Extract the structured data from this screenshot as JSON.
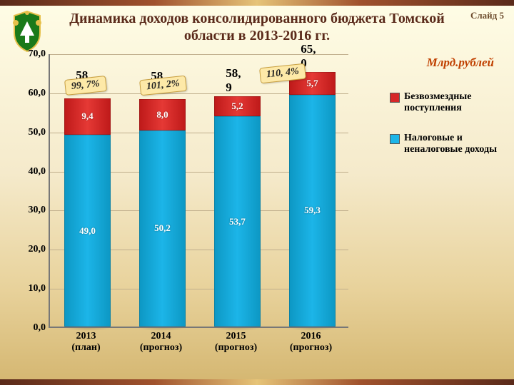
{
  "slide_number": "Слайд 5",
  "title": "Динамика доходов консолидированного бюджета Томской области в 2013-2016 гг.",
  "unit_label": "Млрд.рублей",
  "legend": {
    "grant": "Безвозмездные поступления",
    "tax": "Налоговые и неналоговые доходы"
  },
  "chart": {
    "type": "stacked-bar",
    "y": {
      "min": 0,
      "max": 70,
      "step": 10,
      "ticks": [
        "0,0",
        "10,0",
        "20,0",
        "30,0",
        "40,0",
        "50,0",
        "60,0",
        "70,0"
      ]
    },
    "categories": [
      {
        "label": "2013",
        "sub": "(план)"
      },
      {
        "label": "2014",
        "sub": "(прогноз)"
      },
      {
        "label": "2015",
        "sub": "(прогноз)"
      },
      {
        "label": "2016",
        "sub": "(прогноз)"
      }
    ],
    "series": [
      {
        "name": "tax",
        "values": [
          49.0,
          50.2,
          53.7,
          59.3
        ],
        "labels": [
          "49,0",
          "50,2",
          "53,7",
          "59,3"
        ],
        "color_from": "#0d98c4",
        "color_to": "#1cb5e8",
        "show_label": [
          true,
          true,
          true,
          true
        ]
      },
      {
        "name": "grant",
        "values": [
          9.4,
          8.0,
          5.2,
          5.7
        ],
        "labels": [
          "9,4",
          "8,0",
          "5,2",
          "5,7"
        ],
        "color_from": "#bf1a1a",
        "color_to": "#e53935",
        "show_label": [
          true,
          true,
          true,
          true
        ]
      }
    ],
    "totals": [
      "58, 4",
      "58, 2",
      "58, 9",
      "65, 0"
    ],
    "pct_callouts": [
      {
        "text": "99, 7%",
        "col": 0,
        "y_value": 64
      },
      {
        "text": "101, 2%",
        "col": 1,
        "y_value": 64
      },
      {
        "text": "110, 4%",
        "col": 2.6,
        "y_value": 67
      }
    ],
    "bar_width_ratio": 0.62,
    "grid_color": "#bfae8c",
    "background": "transparent"
  },
  "crest_colors": {
    "shield": "#1a7a1a",
    "accent": "#e6c04a",
    "rim": "#fff"
  }
}
